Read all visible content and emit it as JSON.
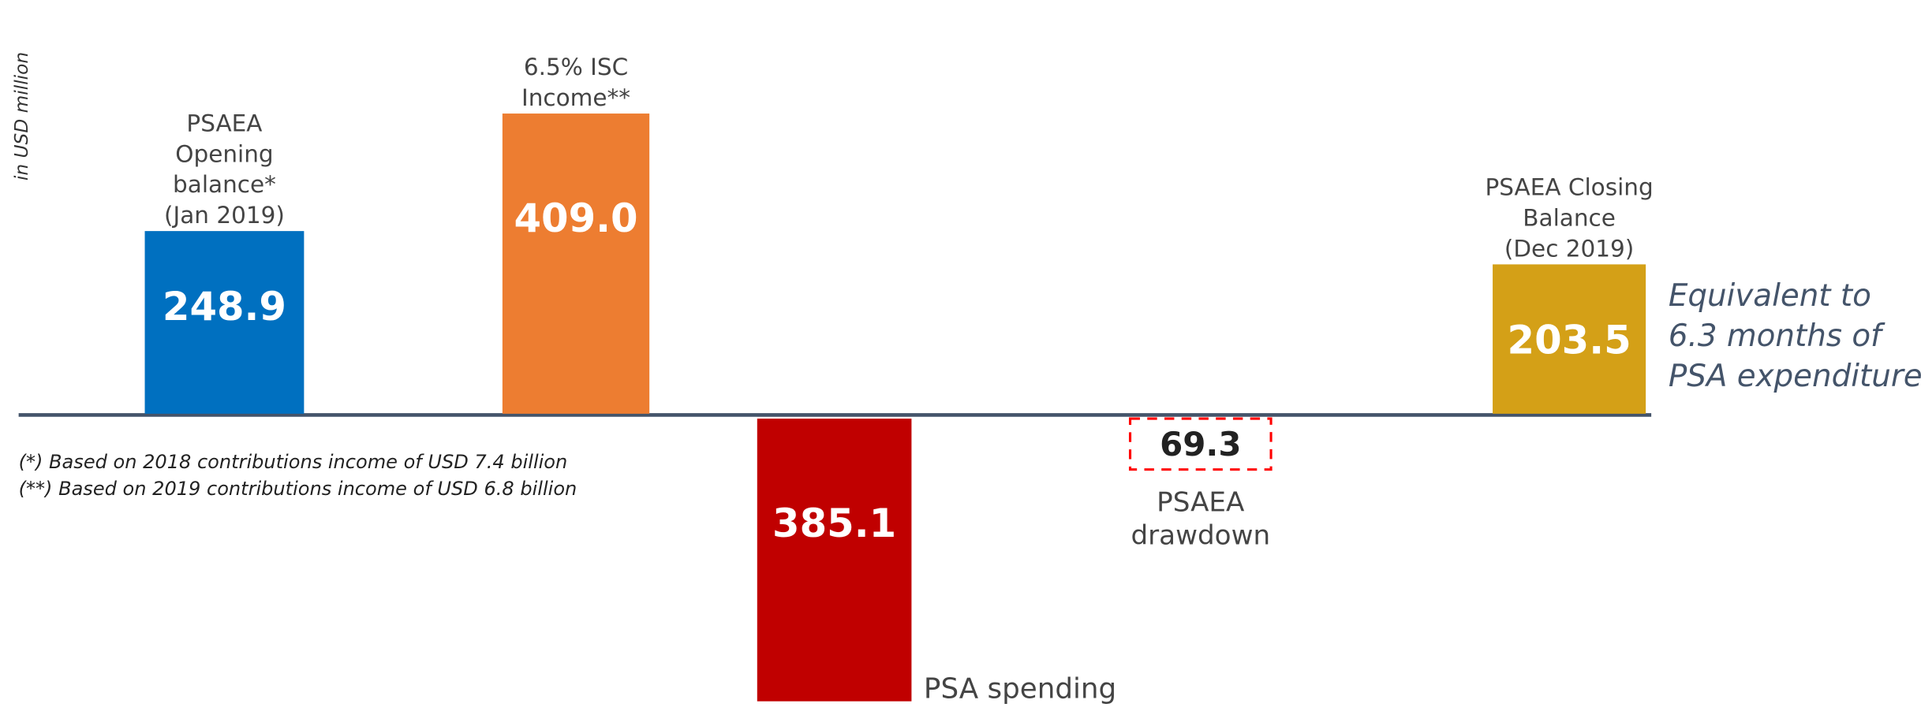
{
  "chart_data": {
    "type": "bar",
    "y_axis_label": "in USD million",
    "categories": [
      [
        "PSAEA",
        "Opening",
        "balance*",
        "(Jan 2019)"
      ],
      [
        "6.5% ISC",
        "Income**"
      ],
      [
        "PSA spending"
      ],
      [
        "PSAEA",
        "drawdown"
      ],
      [
        "PSAEA Closing",
        "Balance",
        "(Dec 2019)"
      ]
    ],
    "values": [
      248.9,
      409.0,
      -385.1,
      -69.3,
      203.5
    ],
    "value_labels": [
      "248.9",
      "409.0",
      "385.1",
      "69.3",
      "203.5"
    ],
    "colors": [
      "#0070c0",
      "#ed7d31",
      "#c00000",
      "#ff0000",
      "#d4a017"
    ],
    "outlined": [
      false,
      false,
      false,
      true,
      false
    ],
    "ylim": [
      -395,
      472
    ],
    "annotation": [
      "Equivalent to",
      "6.3 months of",
      "PSA expenditure"
    ],
    "footnotes": [
      "(*) Based on 2018 contributions income of USD 7.4 billion",
      "(**) Based on 2019 contributions income of USD 6.8 billion"
    ]
  }
}
